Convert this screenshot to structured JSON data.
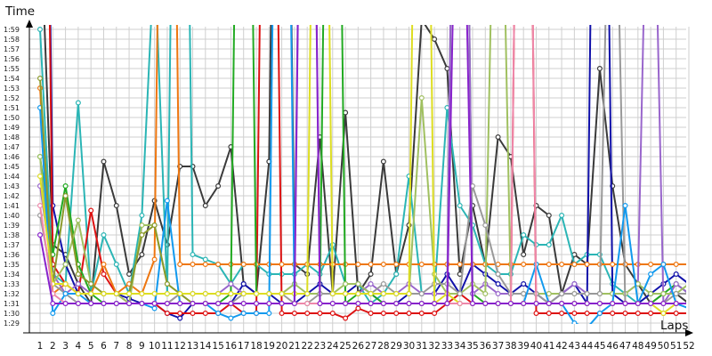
{
  "chart_data": {
    "type": "line",
    "title": "",
    "xlabel": "Laps",
    "ylabel": "Time",
    "x": [
      1,
      2,
      3,
      4,
      5,
      6,
      7,
      8,
      9,
      10,
      11,
      12,
      13,
      14,
      15,
      16,
      17,
      18,
      19,
      20,
      21,
      22,
      23,
      24,
      25,
      26,
      27,
      28,
      29,
      30,
      31,
      32,
      33,
      34,
      35,
      36,
      37,
      38,
      39,
      40,
      41,
      42,
      43,
      44,
      45,
      46,
      47,
      48,
      49,
      50,
      51,
      52
    ],
    "yticks": [
      "1:29",
      "1:30",
      "1:31",
      "1:32",
      "1:33",
      "1:34",
      "1:35",
      "1:36",
      "1:37",
      "1:38",
      "1:39",
      "1:40",
      "1:41",
      "1:42",
      "1:43",
      "1:44",
      "1:45",
      "1:46",
      "1:47",
      "1:48",
      "1:49",
      "1:50",
      "1:51",
      "1:52",
      "1:53",
      "1:54",
      "1:55",
      "1:56",
      "1:57",
      "1:58",
      "1:59"
    ],
    "ylim": [
      "1:28",
      "2:00"
    ],
    "grid": true,
    "legend": "none",
    "series": [
      {
        "color": "#3a3a3a",
        "values": [
          131.5,
          97,
          96,
          93,
          91,
          105.5,
          101,
          94,
          96,
          101.5,
          97,
          105,
          105,
          101,
          103,
          107,
          93,
          92,
          105.5,
          200,
          95,
          94,
          108,
          92,
          110.5,
          92,
          94,
          105.5,
          94,
          99,
          120,
          118,
          115,
          94,
          101,
          95,
          108,
          106,
          96,
          101,
          100,
          92,
          96,
          95,
          115,
          103,
          95,
          93,
          91,
          92,
          92,
          91
        ]
      },
      {
        "color": "#2bb5b5",
        "values": [
          119,
          94,
          93,
          111.5,
          92,
          98,
          95,
          92,
          100,
          127,
          92,
          200,
          96,
          95.5,
          95,
          93,
          95,
          95,
          94,
          94,
          94,
          95,
          94,
          97,
          93,
          93,
          91,
          92,
          94,
          104,
          92,
          92,
          111,
          101,
          99,
          95,
          94,
          94,
          98,
          97,
          97,
          100,
          95,
          96,
          96,
          93,
          92,
          91,
          92,
          92,
          92,
          92
        ]
      },
      {
        "color": "#1111aa",
        "values": [
          200,
          101,
          95,
          92,
          92,
          92,
          92,
          91.5,
          91,
          91,
          90,
          89.5,
          91,
          91,
          91,
          91,
          93,
          92,
          92,
          91,
          91,
          92,
          93,
          92,
          92,
          93,
          92,
          91,
          91,
          92,
          92,
          92,
          94,
          92,
          95,
          94,
          93,
          92,
          93,
          92,
          91,
          92,
          93,
          91,
          200,
          92,
          91,
          91,
          92,
          93,
          94,
          93
        ]
      },
      {
        "color": "#dd1111",
        "values": [
          200,
          95,
          93,
          92,
          100.5,
          94,
          92,
          91,
          91,
          91,
          90,
          90,
          90,
          90,
          90,
          91,
          90,
          90,
          200,
          90,
          90,
          90,
          90,
          90,
          89.5,
          90.5,
          90,
          90,
          90,
          90,
          90,
          90,
          91,
          92,
          91,
          91,
          91,
          91,
          200,
          90,
          90,
          90,
          90,
          90,
          90,
          90,
          90,
          90,
          90,
          90,
          90,
          90
        ]
      },
      {
        "color": "#ee7711",
        "values": [
          113,
          92,
          93,
          92,
          92,
          95,
          92,
          93,
          92,
          95.5,
          200,
          95,
          95,
          95,
          95,
          95,
          95,
          95,
          95,
          95,
          95,
          95,
          95,
          95,
          95,
          95,
          95,
          95,
          95,
          95,
          95,
          95,
          95,
          95,
          95,
          95,
          95,
          95,
          95,
          95,
          95,
          95,
          95,
          95,
          95,
          95,
          95,
          95,
          95,
          95,
          95,
          95
        ]
      },
      {
        "color": "#22aa22",
        "values": [
          106,
          96,
          103,
          95,
          92,
          91,
          91,
          91,
          91,
          91,
          91,
          91,
          91,
          91,
          91,
          92,
          200,
          92,
          92,
          92,
          92,
          92,
          92,
          200,
          91,
          92,
          92,
          91,
          91,
          91,
          91,
          91,
          91,
          200,
          92,
          91,
          91,
          91,
          91,
          91,
          91,
          91,
          91,
          91,
          91,
          91,
          91,
          91,
          91,
          92,
          93,
          92
        ]
      },
      {
        "color": "#9966cc",
        "values": [
          103,
          94,
          92,
          93,
          92,
          92,
          92,
          91,
          91,
          91,
          91,
          92,
          92,
          92,
          92,
          93,
          92,
          92,
          92,
          92,
          93,
          200,
          92,
          92,
          92,
          92,
          93,
          92,
          92,
          93,
          92,
          92,
          92,
          200,
          92,
          93,
          92,
          92,
          92,
          92,
          92,
          92,
          93,
          92,
          92,
          92,
          92,
          93,
          154,
          91,
          93,
          92
        ]
      },
      {
        "color": "#a0c060",
        "values": [
          106,
          93,
          95,
          99.5,
          93,
          92,
          92,
          91,
          99,
          99,
          93,
          92,
          92,
          92,
          92,
          92,
          92,
          92,
          92,
          92,
          93,
          92,
          92,
          92,
          93,
          93,
          92,
          92,
          92,
          92,
          112,
          94,
          92,
          92,
          93,
          92,
          158.5,
          92,
          92,
          92,
          92,
          92,
          92,
          92,
          92,
          92,
          92,
          93,
          92,
          92,
          92,
          93
        ]
      },
      {
        "color": "#999999",
        "values": [
          100,
          93,
          92,
          91,
          91,
          91,
          91,
          91,
          91,
          91,
          91,
          92,
          91,
          91,
          91,
          91,
          92,
          92,
          92,
          92,
          91,
          91,
          92,
          92,
          92,
          92,
          92,
          93,
          92,
          92,
          92,
          93,
          93,
          92,
          103,
          99,
          94,
          92,
          92,
          92,
          91,
          92,
          92,
          92,
          92,
          153.5,
          91,
          91,
          91,
          91,
          92,
          92
        ]
      },
      {
        "color": "#1199ee",
        "values": [
          111,
          90,
          92,
          92,
          91,
          91,
          91,
          91,
          91,
          90.5,
          101.5,
          91,
          91,
          91,
          90,
          89.5,
          90,
          90,
          90,
          200,
          91,
          91,
          91,
          91,
          91,
          91,
          91,
          91,
          91,
          91,
          91,
          91,
          91,
          91,
          91,
          91,
          91,
          91,
          91,
          95,
          91,
          91,
          89,
          88.5,
          90,
          91,
          101,
          91,
          94,
          95,
          91,
          90.5
        ]
      },
      {
        "color": "#8b9a2b",
        "values": [
          114,
          93,
          102,
          94,
          93,
          92,
          92,
          92,
          98,
          99,
          93,
          92,
          91,
          91,
          91,
          91,
          91,
          91,
          91,
          91,
          91,
          91,
          91,
          91,
          91,
          91,
          91,
          91,
          91,
          91,
          91,
          91,
          91,
          91,
          91,
          91,
          91,
          91,
          91,
          91,
          91,
          91,
          91,
          91,
          91,
          91,
          91,
          91,
          91,
          91,
          91,
          91
        ]
      },
      {
        "color": "#dddd22",
        "values": [
          104,
          93,
          93,
          92,
          92,
          92,
          92,
          92,
          92,
          92,
          92,
          92,
          92,
          92,
          92,
          92,
          92,
          92,
          92,
          92,
          92,
          92,
          200,
          92,
          92,
          92,
          92,
          92,
          92,
          92,
          200,
          91,
          92,
          91,
          91,
          91,
          91,
          91,
          91,
          91,
          91,
          91,
          91,
          91,
          91,
          91,
          91,
          91,
          91,
          90,
          91,
          91
        ]
      },
      {
        "color": "#ee88aa",
        "values": [
          101,
          92,
          91,
          91,
          91,
          91,
          91,
          91,
          91,
          91,
          91,
          91,
          91,
          91,
          91,
          91,
          91,
          91,
          91,
          91,
          91,
          91,
          91,
          91,
          91,
          91,
          91,
          91,
          91,
          91,
          91,
          91,
          91,
          91,
          91,
          91,
          91,
          91,
          200,
          91,
          91,
          91,
          91,
          91,
          91,
          91,
          91,
          91,
          91,
          91,
          91,
          91
        ]
      },
      {
        "color": "#8822cc",
        "values": [
          98,
          91,
          91,
          91,
          91,
          91,
          91,
          91,
          91,
          91,
          91,
          91,
          91,
          91,
          91,
          91,
          91,
          91,
          91,
          91,
          91,
          200,
          91,
          91,
          91,
          91,
          91,
          91,
          91,
          91,
          91,
          91,
          91,
          157,
          91,
          91,
          91,
          91,
          91,
          91,
          91,
          91,
          91,
          91,
          91,
          91,
          91,
          91,
          91,
          91,
          91,
          91
        ]
      }
    ]
  }
}
